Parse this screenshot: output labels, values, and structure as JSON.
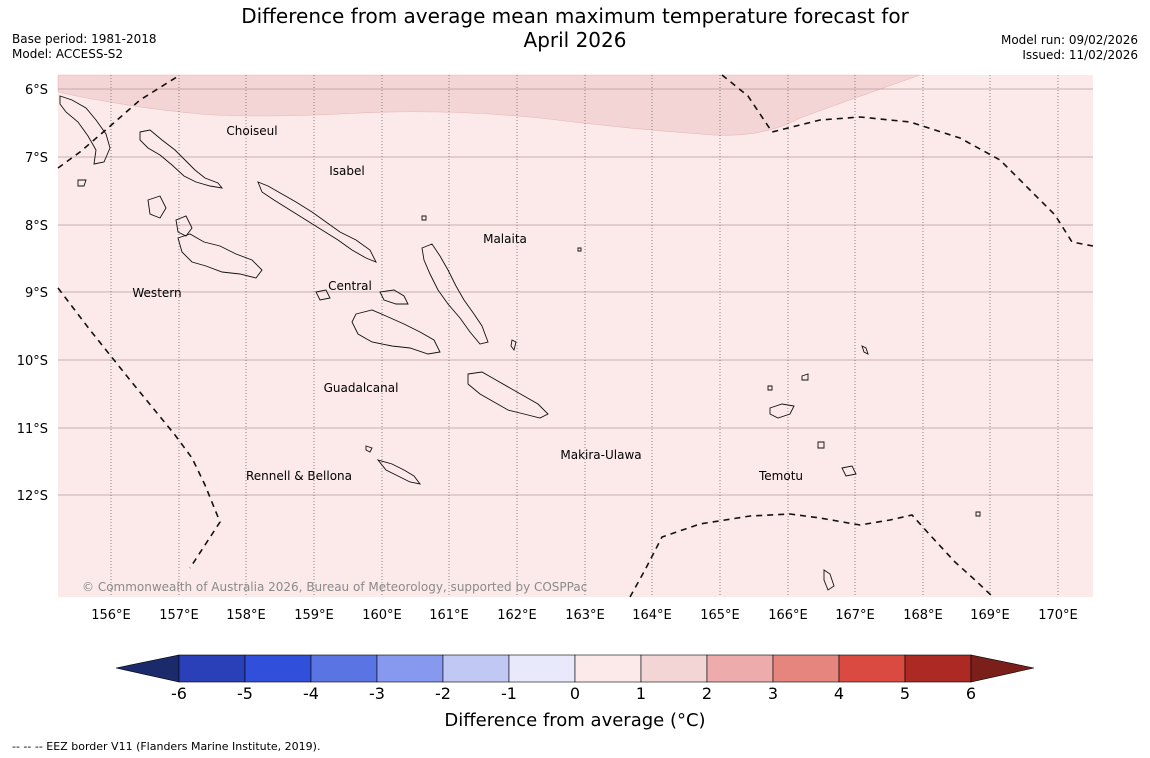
{
  "title": {
    "line1": "Difference from average mean maximum temperature forecast for",
    "line2": "April 2026"
  },
  "meta_left": {
    "base_period": "Base period: 1981-2018",
    "model": "Model: ACCESS-S2"
  },
  "meta_right": {
    "model_run": "Model run: 09/02/2026",
    "issued": "Issued: 11/02/2026"
  },
  "map": {
    "lat_labels": [
      "6°S",
      "7°S",
      "8°S",
      "9°S",
      "10°S",
      "11°S",
      "12°S"
    ],
    "lon_labels": [
      "156°E",
      "157°E",
      "158°E",
      "159°E",
      "160°E",
      "161°E",
      "162°E",
      "163°E",
      "164°E",
      "165°E",
      "166°E",
      "167°E",
      "168°E",
      "169°E",
      "170°E"
    ],
    "regions": [
      "Choiseul",
      "Isabel",
      "Malaita",
      "Central",
      "Western",
      "Guadalcanal",
      "Makira-Ulawa",
      "Rennell & Bellona",
      "Temotu"
    ],
    "copyright": "© Commonwealth of Australia 2026, Bureau of Meteorology, supported by COSPPac",
    "background_color": "#fbeae9",
    "warm_band_color": "#f3d5d5"
  },
  "colorbar": {
    "ticks": [
      "-6",
      "-5",
      "-4",
      "-3",
      "-2",
      "-1",
      "0",
      "1",
      "2",
      "3",
      "4",
      "5",
      "6"
    ],
    "colors": [
      "#223a9b",
      "#2a40b8",
      "#3050dc",
      "#5a74e4",
      "#8699ee",
      "#c0c8f3",
      "#e8eafb",
      "#fbeae9",
      "#f3d5d5",
      "#eeabab",
      "#e6857e",
      "#da4a40",
      "#ad2a24"
    ],
    "under_color": "#1a2a6b",
    "over_color": "#7a1f1a",
    "label": "Difference from average (°C)"
  },
  "footnote": "-- -- -- EEZ border V11 (Flanders Marine Institute, 2019)."
}
